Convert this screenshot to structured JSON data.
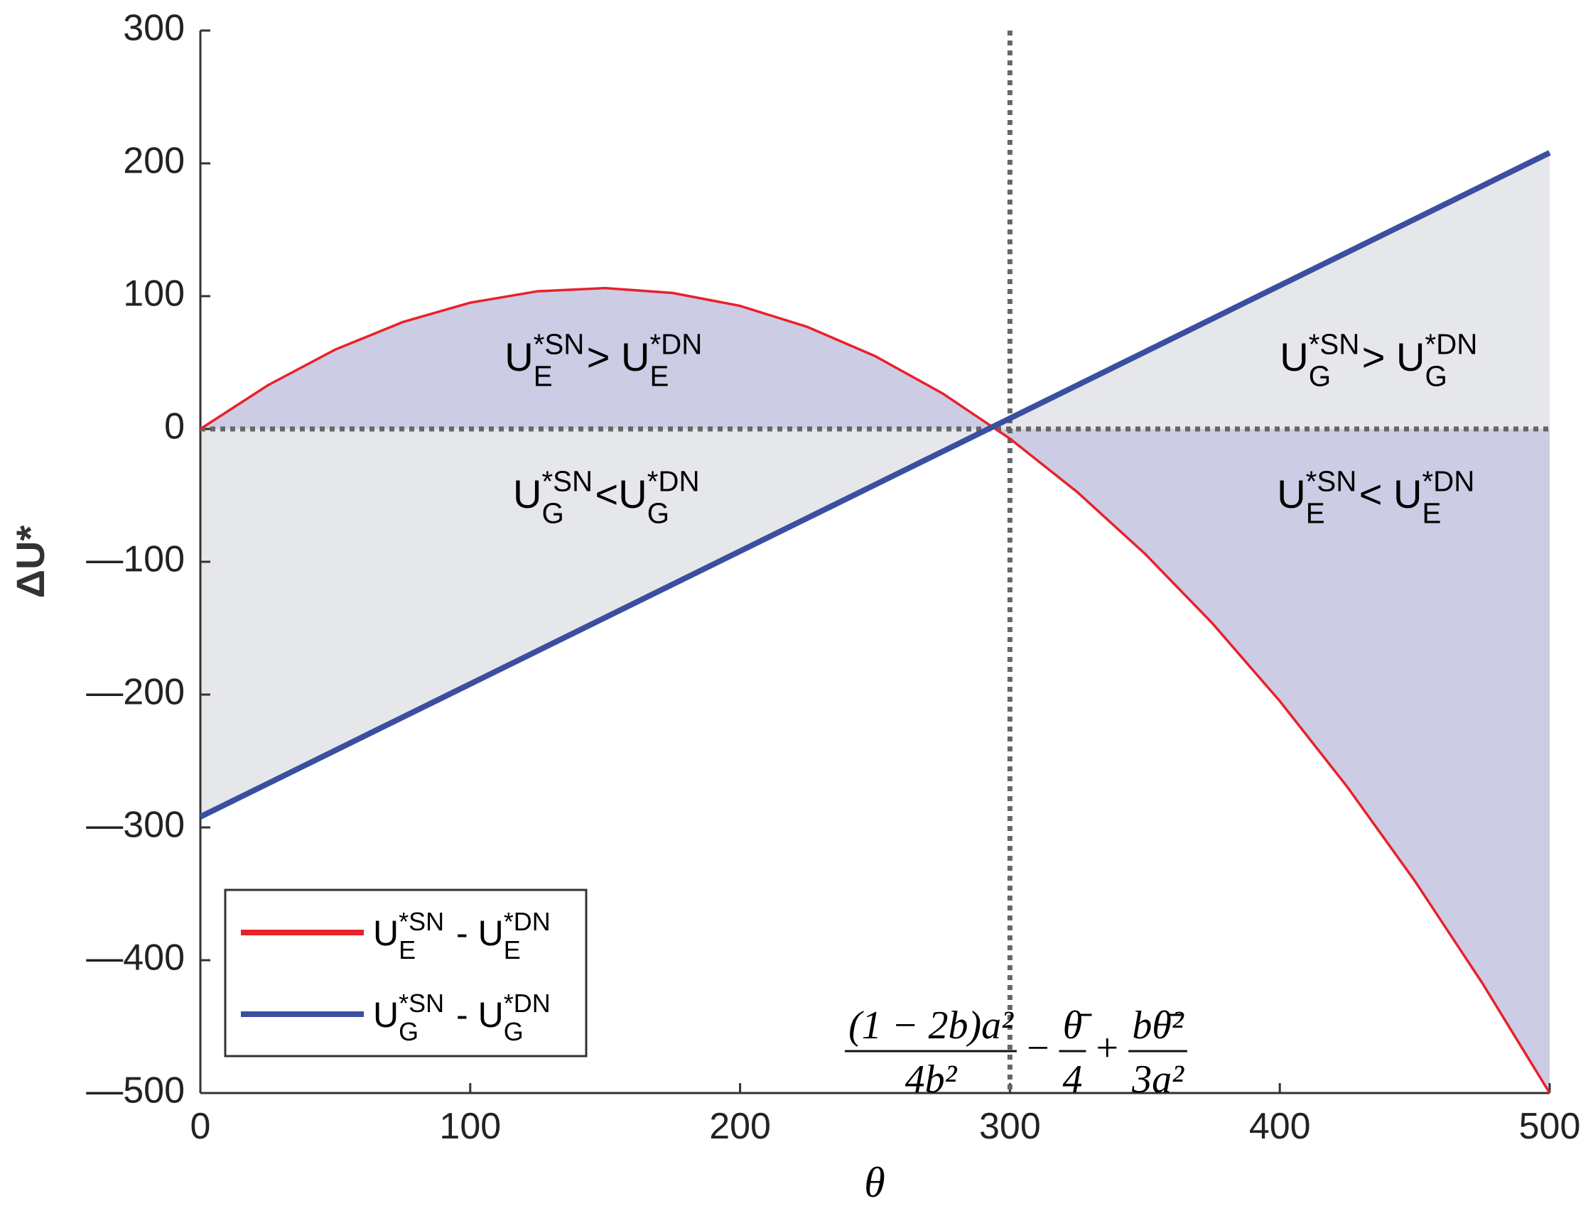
{
  "chart_data": {
    "type": "line",
    "x_label": "θ",
    "y_label": "ΔU*",
    "x": [
      0,
      25,
      50,
      75,
      100,
      125,
      150,
      175,
      200,
      225,
      250,
      275,
      300,
      325,
      350,
      375,
      400,
      425,
      450,
      475,
      500
    ],
    "series": [
      {
        "name": [
          {
            "text": "U"
          },
          {
            "sub": "E",
            "sup": "*SN"
          },
          {
            "text": " - U"
          },
          {
            "sub": "E",
            "sup": "*DN"
          }
        ],
        "color": "#e8212a",
        "fill": "#cccce4",
        "values": [
          0,
          32.9,
          59.8,
          80.5,
          95.1,
          103.7,
          106.1,
          102.4,
          92.7,
          76.8,
          54.9,
          26.8,
          -7.3,
          -47.6,
          -93.9,
          -146.3,
          -204.9,
          -269.5,
          -340.2,
          -417.1,
          -500
        ]
      },
      {
        "name": [
          {
            "text": "U"
          },
          {
            "sub": "G",
            "sup": "*SN"
          },
          {
            "text": " - U"
          },
          {
            "sub": "G",
            "sup": "*DN"
          }
        ],
        "color": "#3a4fa0",
        "fill": "#e6e7ea",
        "values": [
          -292,
          -267,
          -242,
          -217,
          -192,
          -167,
          -142,
          -117,
          -92,
          -67,
          -42,
          -17,
          8,
          33,
          58,
          83,
          108,
          133,
          158,
          183,
          208
        ]
      }
    ],
    "xlim": [
      0,
      500
    ],
    "ylim": [
      -500,
      300
    ],
    "xticks": [
      0,
      100,
      200,
      300,
      400,
      500
    ],
    "yticks": [
      {
        "value": -500,
        "label": "—500"
      },
      {
        "value": -400,
        "label": "—400"
      },
      {
        "value": -300,
        "label": "—300"
      },
      {
        "value": -200,
        "label": "—200"
      },
      {
        "value": -100,
        "label": "—100"
      },
      0,
      100,
      200,
      300
    ],
    "hline": 0,
    "vline": 300,
    "legend": "lower left",
    "annotations": [
      [
        {
          "text": "U"
        },
        {
          "sub": "E",
          "sup": "*SN"
        },
        {
          "text": "> U"
        },
        {
          "sub": "E",
          "sup": "*DN"
        }
      ],
      [
        {
          "text": "U"
        },
        {
          "sub": "G",
          "sup": "*SN"
        },
        {
          "text": "<U"
        },
        {
          "sub": "G",
          "sup": "*DN"
        }
      ],
      [
        {
          "text": "U"
        },
        {
          "sub": "G",
          "sup": "*SN"
        },
        {
          "text": "> U"
        },
        {
          "sub": "G",
          "sup": "*DN"
        }
      ],
      [
        {
          "text": "U"
        },
        {
          "sub": "E",
          "sup": "*SN"
        },
        {
          "text": "< U"
        },
        {
          "sub": "E",
          "sup": "*DN"
        }
      ]
    ],
    "formula": [
      {
        "num": "(1 − 2b)a²",
        "den": "4b²"
      },
      {
        "op": "−"
      },
      {
        "num": "θ̄",
        "den": "4"
      },
      {
        "op": "+"
      },
      {
        "num": "bθ̄²",
        "den": "3a²"
      }
    ]
  }
}
